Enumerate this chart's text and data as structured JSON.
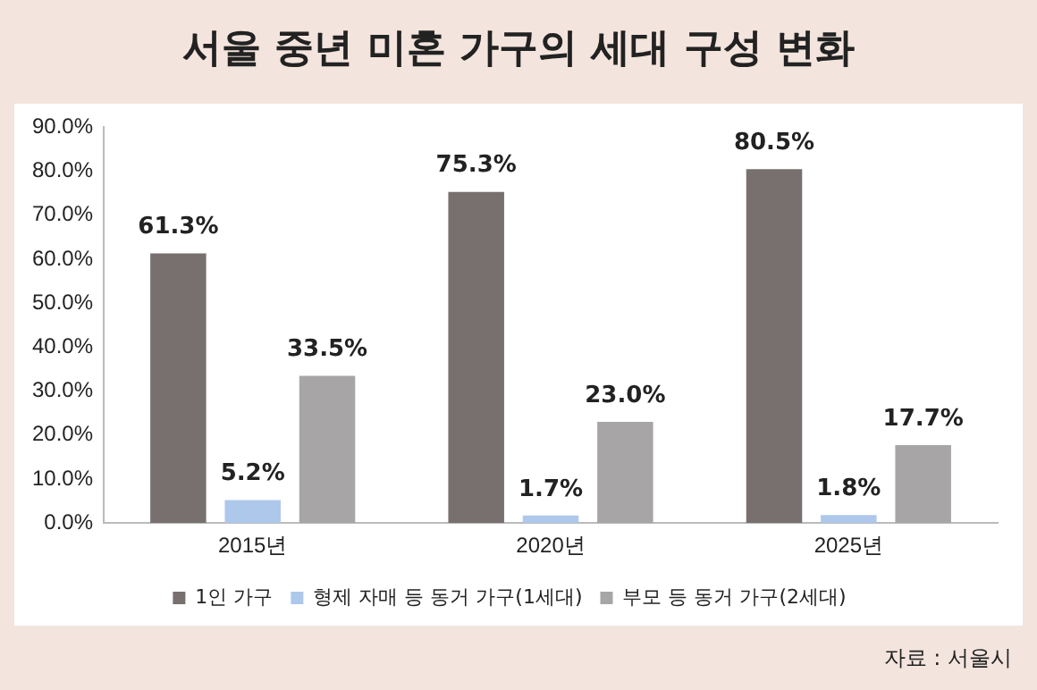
{
  "chart_data": {
    "type": "bar",
    "title": "서울 중년 미혼 가구의 세대 구성 변화",
    "categories": [
      "2015년",
      "2020년",
      "2025년"
    ],
    "series": [
      {
        "name": "1인 가구",
        "color": "#77706f",
        "values": [
          61.3,
          75.3,
          80.5
        ],
        "value_labels": [
          "61.3%",
          "75.3%",
          "80.5%"
        ]
      },
      {
        "name": "형제 자매 등 동거 가구(1세대)",
        "color": "#aec8ec",
        "values": [
          5.2,
          1.7,
          1.8
        ],
        "value_labels": [
          "5.2%",
          "1.7%",
          "1.8%"
        ]
      },
      {
        "name": "부모 등 동거 가구(2세대)",
        "color": "#a7a5a5",
        "values": [
          33.5,
          23.0,
          17.7
        ],
        "value_labels": [
          "33.5%",
          "23.0%",
          "17.7%"
        ]
      }
    ],
    "ylim": [
      0,
      90
    ],
    "yticks": [
      {
        "value": 0,
        "label": "0.0%"
      },
      {
        "value": 10,
        "label": "10.0%"
      },
      {
        "value": 20,
        "label": "20.0%"
      },
      {
        "value": 30,
        "label": "30.0%"
      },
      {
        "value": 40,
        "label": "40.0%"
      },
      {
        "value": 50,
        "label": "50.0%"
      },
      {
        "value": 60,
        "label": "60.0%"
      },
      {
        "value": 70,
        "label": "70.0%"
      },
      {
        "value": 80,
        "label": "80.0%"
      },
      {
        "value": 90,
        "label": "90.0%"
      }
    ],
    "legend": "bottom",
    "annotations": [
      "자료 : 서울시"
    ]
  }
}
